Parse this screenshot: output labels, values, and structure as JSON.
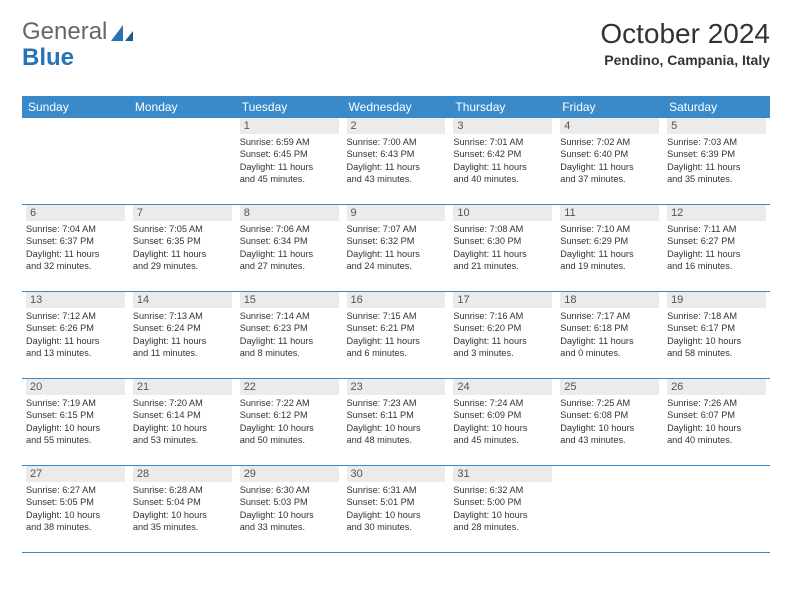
{
  "logo": {
    "part1": "General",
    "part2": "Blue"
  },
  "title": "October 2024",
  "location": "Pendino, Campania, Italy",
  "colors": {
    "header_bg": "#3a8ac9",
    "header_text": "#ffffff",
    "daynum_bg": "#ebebec",
    "daynum_text": "#555555",
    "body_text": "#333333",
    "border": "#3a8ac9",
    "logo_accent": "#2873b8",
    "logo_gray": "#666666"
  },
  "day_headers": [
    "Sunday",
    "Monday",
    "Tuesday",
    "Wednesday",
    "Thursday",
    "Friday",
    "Saturday"
  ],
  "weeks": [
    [
      null,
      null,
      {
        "n": "1",
        "sr": "Sunrise: 6:59 AM",
        "ss": "Sunset: 6:45 PM",
        "d1": "Daylight: 11 hours",
        "d2": "and 45 minutes."
      },
      {
        "n": "2",
        "sr": "Sunrise: 7:00 AM",
        "ss": "Sunset: 6:43 PM",
        "d1": "Daylight: 11 hours",
        "d2": "and 43 minutes."
      },
      {
        "n": "3",
        "sr": "Sunrise: 7:01 AM",
        "ss": "Sunset: 6:42 PM",
        "d1": "Daylight: 11 hours",
        "d2": "and 40 minutes."
      },
      {
        "n": "4",
        "sr": "Sunrise: 7:02 AM",
        "ss": "Sunset: 6:40 PM",
        "d1": "Daylight: 11 hours",
        "d2": "and 37 minutes."
      },
      {
        "n": "5",
        "sr": "Sunrise: 7:03 AM",
        "ss": "Sunset: 6:39 PM",
        "d1": "Daylight: 11 hours",
        "d2": "and 35 minutes."
      }
    ],
    [
      {
        "n": "6",
        "sr": "Sunrise: 7:04 AM",
        "ss": "Sunset: 6:37 PM",
        "d1": "Daylight: 11 hours",
        "d2": "and 32 minutes."
      },
      {
        "n": "7",
        "sr": "Sunrise: 7:05 AM",
        "ss": "Sunset: 6:35 PM",
        "d1": "Daylight: 11 hours",
        "d2": "and 29 minutes."
      },
      {
        "n": "8",
        "sr": "Sunrise: 7:06 AM",
        "ss": "Sunset: 6:34 PM",
        "d1": "Daylight: 11 hours",
        "d2": "and 27 minutes."
      },
      {
        "n": "9",
        "sr": "Sunrise: 7:07 AM",
        "ss": "Sunset: 6:32 PM",
        "d1": "Daylight: 11 hours",
        "d2": "and 24 minutes."
      },
      {
        "n": "10",
        "sr": "Sunrise: 7:08 AM",
        "ss": "Sunset: 6:30 PM",
        "d1": "Daylight: 11 hours",
        "d2": "and 21 minutes."
      },
      {
        "n": "11",
        "sr": "Sunrise: 7:10 AM",
        "ss": "Sunset: 6:29 PM",
        "d1": "Daylight: 11 hours",
        "d2": "and 19 minutes."
      },
      {
        "n": "12",
        "sr": "Sunrise: 7:11 AM",
        "ss": "Sunset: 6:27 PM",
        "d1": "Daylight: 11 hours",
        "d2": "and 16 minutes."
      }
    ],
    [
      {
        "n": "13",
        "sr": "Sunrise: 7:12 AM",
        "ss": "Sunset: 6:26 PM",
        "d1": "Daylight: 11 hours",
        "d2": "and 13 minutes."
      },
      {
        "n": "14",
        "sr": "Sunrise: 7:13 AM",
        "ss": "Sunset: 6:24 PM",
        "d1": "Daylight: 11 hours",
        "d2": "and 11 minutes."
      },
      {
        "n": "15",
        "sr": "Sunrise: 7:14 AM",
        "ss": "Sunset: 6:23 PM",
        "d1": "Daylight: 11 hours",
        "d2": "and 8 minutes."
      },
      {
        "n": "16",
        "sr": "Sunrise: 7:15 AM",
        "ss": "Sunset: 6:21 PM",
        "d1": "Daylight: 11 hours",
        "d2": "and 6 minutes."
      },
      {
        "n": "17",
        "sr": "Sunrise: 7:16 AM",
        "ss": "Sunset: 6:20 PM",
        "d1": "Daylight: 11 hours",
        "d2": "and 3 minutes."
      },
      {
        "n": "18",
        "sr": "Sunrise: 7:17 AM",
        "ss": "Sunset: 6:18 PM",
        "d1": "Daylight: 11 hours",
        "d2": "and 0 minutes."
      },
      {
        "n": "19",
        "sr": "Sunrise: 7:18 AM",
        "ss": "Sunset: 6:17 PM",
        "d1": "Daylight: 10 hours",
        "d2": "and 58 minutes."
      }
    ],
    [
      {
        "n": "20",
        "sr": "Sunrise: 7:19 AM",
        "ss": "Sunset: 6:15 PM",
        "d1": "Daylight: 10 hours",
        "d2": "and 55 minutes."
      },
      {
        "n": "21",
        "sr": "Sunrise: 7:20 AM",
        "ss": "Sunset: 6:14 PM",
        "d1": "Daylight: 10 hours",
        "d2": "and 53 minutes."
      },
      {
        "n": "22",
        "sr": "Sunrise: 7:22 AM",
        "ss": "Sunset: 6:12 PM",
        "d1": "Daylight: 10 hours",
        "d2": "and 50 minutes."
      },
      {
        "n": "23",
        "sr": "Sunrise: 7:23 AM",
        "ss": "Sunset: 6:11 PM",
        "d1": "Daylight: 10 hours",
        "d2": "and 48 minutes."
      },
      {
        "n": "24",
        "sr": "Sunrise: 7:24 AM",
        "ss": "Sunset: 6:09 PM",
        "d1": "Daylight: 10 hours",
        "d2": "and 45 minutes."
      },
      {
        "n": "25",
        "sr": "Sunrise: 7:25 AM",
        "ss": "Sunset: 6:08 PM",
        "d1": "Daylight: 10 hours",
        "d2": "and 43 minutes."
      },
      {
        "n": "26",
        "sr": "Sunrise: 7:26 AM",
        "ss": "Sunset: 6:07 PM",
        "d1": "Daylight: 10 hours",
        "d2": "and 40 minutes."
      }
    ],
    [
      {
        "n": "27",
        "sr": "Sunrise: 6:27 AM",
        "ss": "Sunset: 5:05 PM",
        "d1": "Daylight: 10 hours",
        "d2": "and 38 minutes."
      },
      {
        "n": "28",
        "sr": "Sunrise: 6:28 AM",
        "ss": "Sunset: 5:04 PM",
        "d1": "Daylight: 10 hours",
        "d2": "and 35 minutes."
      },
      {
        "n": "29",
        "sr": "Sunrise: 6:30 AM",
        "ss": "Sunset: 5:03 PM",
        "d1": "Daylight: 10 hours",
        "d2": "and 33 minutes."
      },
      {
        "n": "30",
        "sr": "Sunrise: 6:31 AM",
        "ss": "Sunset: 5:01 PM",
        "d1": "Daylight: 10 hours",
        "d2": "and 30 minutes."
      },
      {
        "n": "31",
        "sr": "Sunrise: 6:32 AM",
        "ss": "Sunset: 5:00 PM",
        "d1": "Daylight: 10 hours",
        "d2": "and 28 minutes."
      },
      null,
      null
    ]
  ]
}
